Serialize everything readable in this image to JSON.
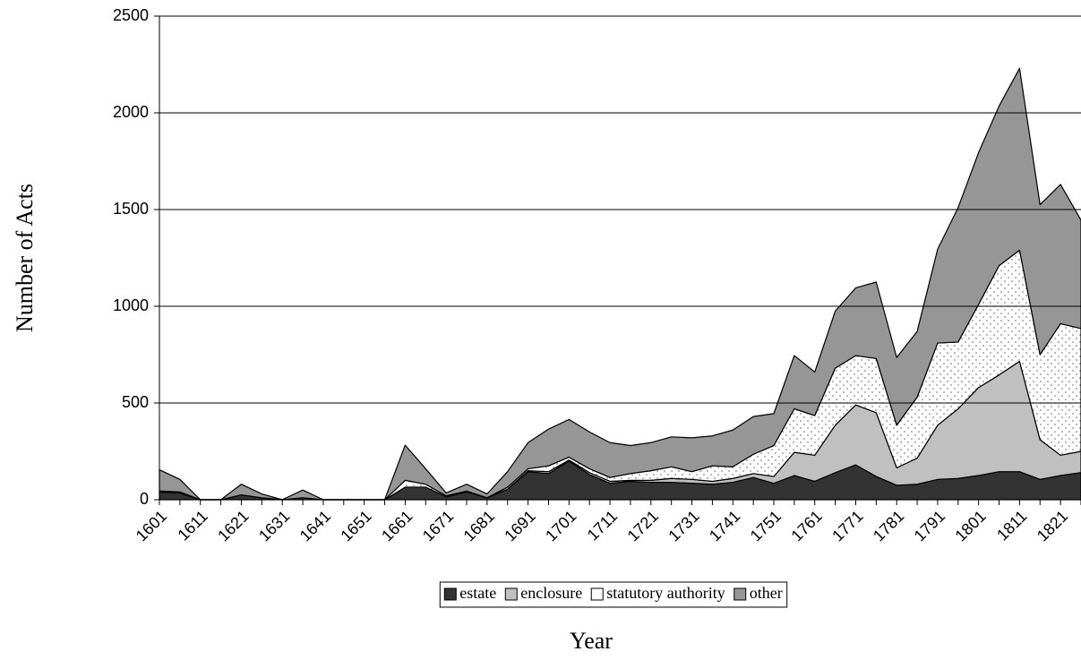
{
  "chart_data": {
    "type": "stacked_area",
    "x_label": "Year",
    "y_label": "Number of Acts",
    "categories": [
      "1601",
      null,
      "1611",
      null,
      "1621",
      null,
      "1631",
      null,
      "1641",
      null,
      "1651",
      null,
      "1661",
      null,
      "1671",
      null,
      "1681",
      null,
      "1691",
      null,
      "1701",
      null,
      "1711",
      null,
      "1721",
      null,
      "1731",
      null,
      "1741",
      null,
      "1751",
      null,
      "1761",
      null,
      "1771",
      null,
      "1781",
      null,
      "1791",
      null,
      "1801",
      null,
      "1811",
      null,
      "1821",
      null
    ],
    "series": [
      {
        "name": "estate",
        "color": "#333333",
        "values": [
          40,
          35,
          0,
          0,
          25,
          10,
          0,
          10,
          0,
          0,
          0,
          0,
          65,
          65,
          15,
          40,
          10,
          55,
          145,
          135,
          200,
          130,
          85,
          95,
          90,
          90,
          85,
          80,
          90,
          115,
          85,
          125,
          95,
          140,
          180,
          120,
          75,
          80,
          105,
          110,
          125,
          145,
          145,
          105,
          125,
          140
        ]
      },
      {
        "name": "enclosure",
        "color": "#c0c0c0",
        "values": [
          0,
          0,
          0,
          0,
          0,
          0,
          0,
          0,
          0,
          0,
          0,
          0,
          0,
          0,
          0,
          0,
          0,
          0,
          5,
          10,
          5,
          10,
          10,
          5,
          10,
          20,
          20,
          15,
          20,
          20,
          35,
          120,
          135,
          245,
          310,
          330,
          90,
          135,
          280,
          360,
          455,
          500,
          570,
          205,
          105,
          110
        ]
      },
      {
        "name": "statutory authority",
        "color": "#ffffff",
        "values": [
          5,
          5,
          0,
          0,
          0,
          0,
          0,
          0,
          0,
          0,
          0,
          0,
          35,
          15,
          5,
          5,
          0,
          10,
          10,
          30,
          15,
          20,
          20,
          35,
          50,
          60,
          40,
          80,
          60,
          100,
          160,
          225,
          205,
          295,
          255,
          280,
          220,
          315,
          425,
          345,
          430,
          565,
          575,
          440,
          680,
          635
        ]
      },
      {
        "name": "other",
        "color": "#969696",
        "values": [
          110,
          65,
          0,
          0,
          55,
          20,
          0,
          40,
          0,
          0,
          0,
          0,
          182,
          80,
          15,
          35,
          20,
          80,
          135,
          190,
          195,
          190,
          180,
          145,
          145,
          155,
          175,
          155,
          190,
          195,
          165,
          275,
          225,
          295,
          350,
          395,
          350,
          340,
          485,
          695,
          785,
          825,
          940,
          775,
          720,
          560
        ]
      }
    ],
    "ylim": [
      0,
      2500
    ],
    "yticks": [
      0,
      500,
      1000,
      1500,
      2000,
      2500
    ],
    "grid": true,
    "legend": "bottom"
  }
}
